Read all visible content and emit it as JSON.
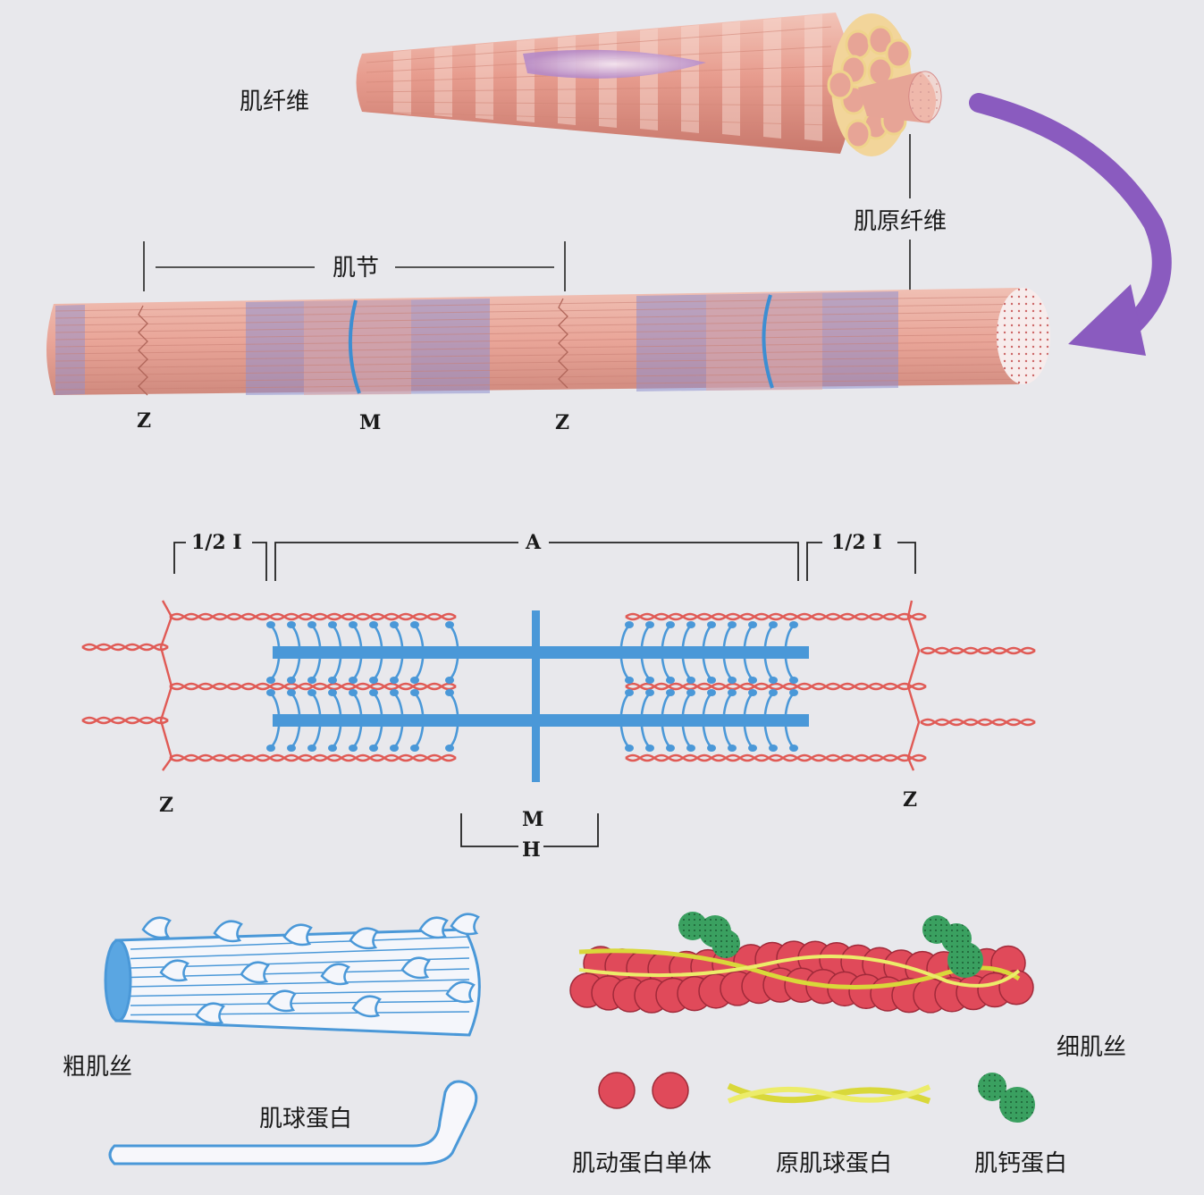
{
  "labels": {
    "muscle_fiber": "肌纤维",
    "myofibril": "肌原纤维",
    "sarcomere": "肌节",
    "z": "Z",
    "m": "M",
    "h": "H",
    "a_band": "A",
    "half_i_band": "1/2 I",
    "thick_filament": "粗肌丝",
    "thin_filament": "细肌丝",
    "myosin": "肌球蛋白",
    "actin_monomer": "肌动蛋白单体",
    "tropomyosin": "原肌球蛋白",
    "troponin": "肌钙蛋白"
  },
  "colors": {
    "background": "#e8e8ec",
    "fiber_pink": "#e8a094",
    "band_blue": "#7f86c9",
    "thick_blue": "#4a98d8",
    "thin_red": "#e05a55",
    "actin_red": "#e04a5a",
    "tropomyosin_yellow": "#e3e24a",
    "troponin_green": "#3aa060",
    "arrow_purple": "#8a5bbf"
  }
}
